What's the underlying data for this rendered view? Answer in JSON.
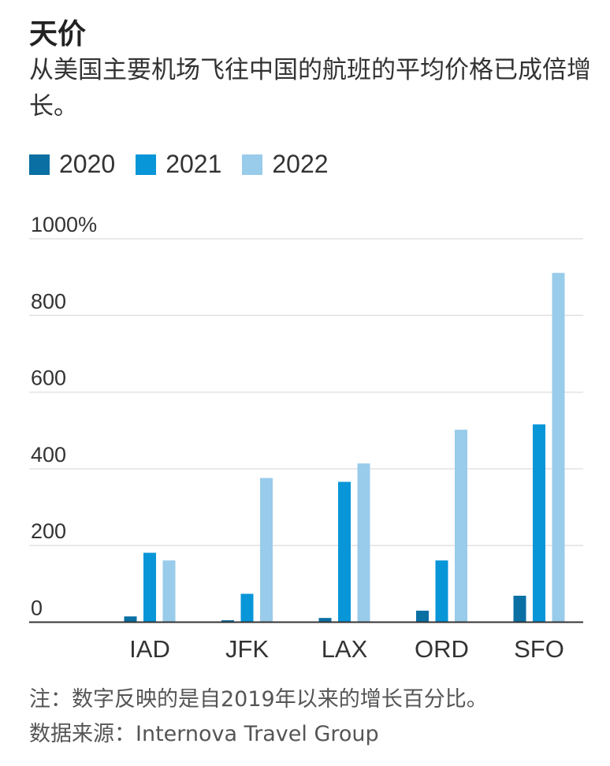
{
  "title": "天价",
  "subtitle": "从美国主要机场飞往中国的航班的平均价格已成倍增长。",
  "note": "注：数字反映的是自2019年以来的增长百分比。",
  "source": "数据来源：Internova Travel Group",
  "chart_data": {
    "type": "bar",
    "categories": [
      "IAD",
      "JFK",
      "LAX",
      "ORD",
      "SFO"
    ],
    "series": [
      {
        "name": "2020",
        "color": "#0a6fa3",
        "values": [
          15,
          5,
          11,
          30,
          69
        ]
      },
      {
        "name": "2021",
        "color": "#0896d8",
        "values": [
          181,
          74,
          366,
          161,
          516
        ]
      },
      {
        "name": "2022",
        "color": "#99cbea",
        "values": [
          161,
          376,
          414,
          502,
          911
        ]
      }
    ],
    "ylim": [
      0,
      1000
    ],
    "yticks": [
      0,
      200,
      400,
      600,
      800,
      1000
    ],
    "ytick_labels": [
      "0",
      "200",
      "400",
      "600",
      "800",
      "1000%"
    ],
    "grid": true,
    "legend_position": "top-left"
  }
}
